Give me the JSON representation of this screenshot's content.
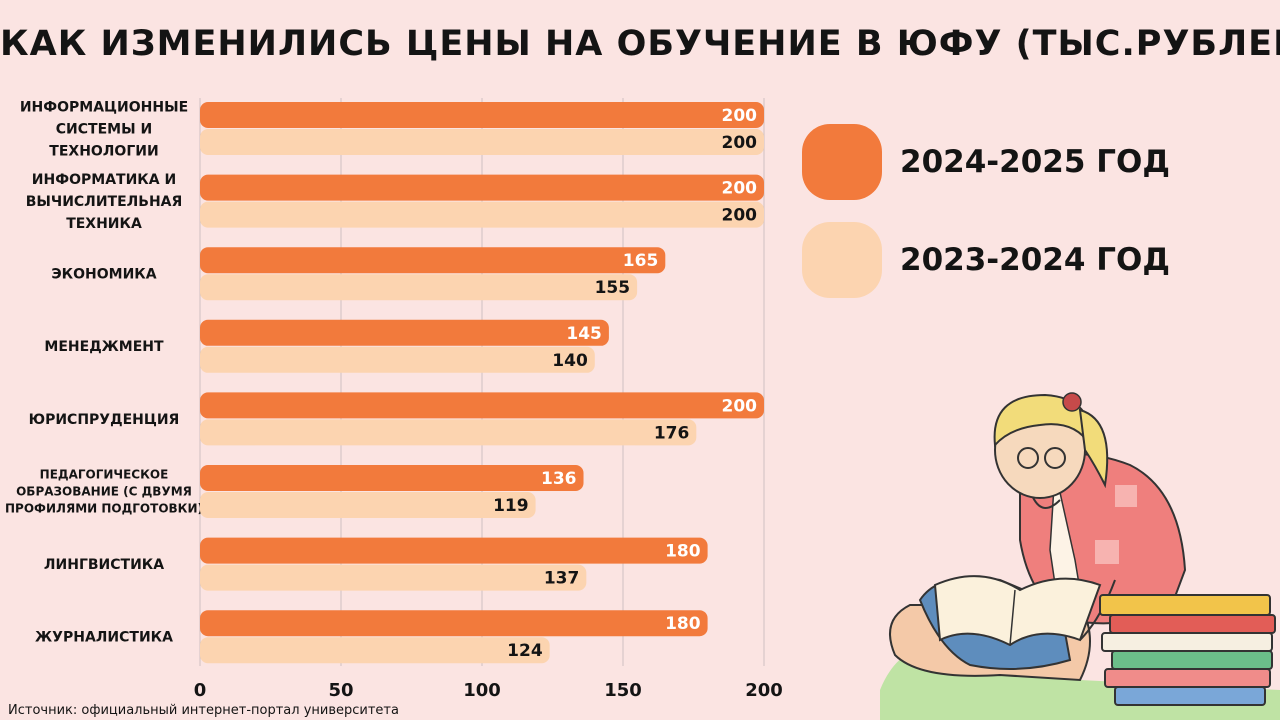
{
  "chart_data": {
    "type": "bar",
    "orientation": "horizontal",
    "title": "КАК ИЗМЕНИЛИСЬ ЦЕНЫ НА ОБУЧЕНИЕ В ЮФУ (ТЫС.РУБЛЕЙ)",
    "categories": [
      [
        "ИНФОРМАЦИОННЫЕ",
        "СИСТЕМЫ И",
        "ТЕХНОЛОГИИ"
      ],
      [
        "ИНФОРМАТИКА И",
        "ВЫЧИСЛИТЕЛЬНАЯ",
        "ТЕХНИКА"
      ],
      [
        "ЭКОНОМИКА"
      ],
      [
        "МЕНЕДЖМЕНТ"
      ],
      [
        "ЮРИСПРУДЕНЦИЯ"
      ],
      [
        "ПЕДАГОГИЧЕСКОЕ",
        "ОБРАЗОВАНИЕ (С ДВУМЯ",
        "ПРОФИЛЯМИ ПОДГОТОВКИ)"
      ],
      [
        "ЛИНГВИСТИКА"
      ],
      [
        "ЖУРНАЛИСТИКА"
      ]
    ],
    "series": [
      {
        "name": "2024-2025 ГОД",
        "color": "#f27a3c",
        "label_color": "#ffffff",
        "values": [
          200,
          200,
          165,
          145,
          200,
          136,
          180,
          180
        ]
      },
      {
        "name": "2023-2024 ГОД",
        "color": "#fcd4b0",
        "label_color": "#141414",
        "values": [
          200,
          200,
          155,
          140,
          176,
          119,
          137,
          124
        ]
      }
    ],
    "xlim": [
      0,
      200
    ],
    "xticks": [
      "0",
      "50",
      "100",
      "150",
      "200"
    ],
    "grid": true,
    "legend_position": "right"
  },
  "source": "Источник: официальный интернет-портал университета"
}
